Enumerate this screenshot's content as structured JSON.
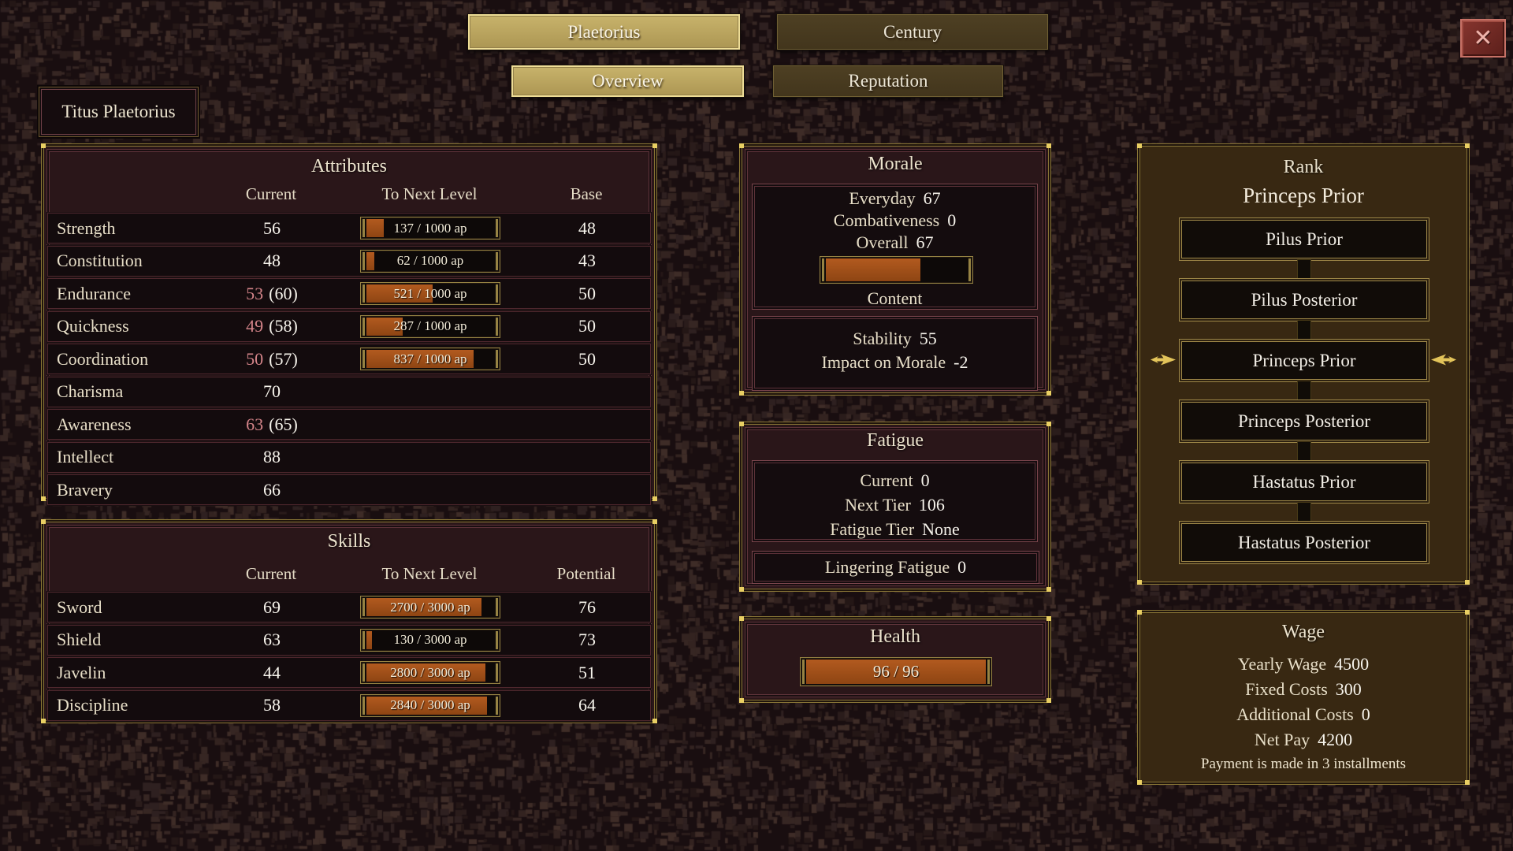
{
  "icons": {
    "close": "✕"
  },
  "tabs": [
    {
      "label": "Plaetorius",
      "active": true
    },
    {
      "label": "Century",
      "active": false
    },
    {
      "label": "Overview",
      "active": true
    },
    {
      "label": "Reputation",
      "active": false
    }
  ],
  "character": {
    "name": "Titus Plaetorius"
  },
  "attributes": {
    "title": "Attributes",
    "columns": {
      "current": "Current",
      "next": "To Next Level",
      "base": "Base"
    },
    "rows": [
      {
        "name": "Strength",
        "current": "56",
        "cap": "",
        "bar_label": "137 / 1000 ap",
        "fill": 13.7,
        "base": "48"
      },
      {
        "name": "Constitution",
        "current": "48",
        "cap": "",
        "bar_label": "62 / 1000 ap",
        "fill": 6.2,
        "base": "43"
      },
      {
        "name": "Endurance",
        "current": "53",
        "cap": "(60)",
        "bar_label": "521 / 1000 ap",
        "fill": 52.1,
        "base": "50"
      },
      {
        "name": "Quickness",
        "current": "49",
        "cap": "(58)",
        "bar_label": "287 / 1000 ap",
        "fill": 28.7,
        "base": "50"
      },
      {
        "name": "Coordination",
        "current": "50",
        "cap": "(57)",
        "bar_label": "837 / 1000 ap",
        "fill": 83.7,
        "base": "50"
      },
      {
        "name": "Charisma",
        "current": "70",
        "cap": ""
      },
      {
        "name": "Awareness",
        "current": "63",
        "cap": "(65)"
      },
      {
        "name": "Intellect",
        "current": "88",
        "cap": ""
      },
      {
        "name": "Bravery",
        "current": "66",
        "cap": ""
      }
    ]
  },
  "skills": {
    "title": "Skills",
    "columns": {
      "current": "Current",
      "next": "To Next Level",
      "potential": "Potential"
    },
    "rows": [
      {
        "name": "Sword",
        "current": "69",
        "bar_label": "2700 / 3000 ap",
        "fill": 90.0,
        "potential": "76"
      },
      {
        "name": "Shield",
        "current": "63",
        "bar_label": "130 / 3000 ap",
        "fill": 4.3,
        "potential": "73"
      },
      {
        "name": "Javelin",
        "current": "44",
        "bar_label": "2800 / 3000 ap",
        "fill": 93.3,
        "potential": "51"
      },
      {
        "name": "Discipline",
        "current": "58",
        "bar_label": "2840 / 3000 ap",
        "fill": 94.7,
        "potential": "64"
      }
    ]
  },
  "morale": {
    "title": "Morale",
    "everyday_label": "Everyday",
    "everyday": "67",
    "combativeness_label": "Combativeness",
    "combativeness": "0",
    "overall_label": "Overall",
    "overall": "67",
    "fill": 67,
    "state": "Content",
    "stability_label": "Stability",
    "stability": "55",
    "impact_label": "Impact on Morale",
    "impact": "-2"
  },
  "fatigue": {
    "title": "Fatigue",
    "current_label": "Current",
    "current": "0",
    "next_tier_label": "Next Tier",
    "next_tier": "106",
    "tier_label": "Fatigue Tier",
    "tier": "None",
    "lingering_label": "Lingering Fatigue",
    "lingering": "0"
  },
  "health": {
    "title": "Health",
    "label": "96 / 96",
    "fill": 100
  },
  "rank": {
    "title": "Rank",
    "current": "Princeps Prior",
    "current_index": 2,
    "ladder": [
      "Pilus Prior",
      "Pilus Posterior",
      "Princeps Prior",
      "Princeps Posterior",
      "Hastatus Prior",
      "Hastatus Posterior"
    ]
  },
  "wage": {
    "title": "Wage",
    "items": [
      {
        "label": "Yearly Wage",
        "value": "4500"
      },
      {
        "label": "Fixed Costs",
        "value": "300"
      },
      {
        "label": "Additional Costs",
        "value": "0"
      },
      {
        "label": "Net Pay",
        "value": "4200"
      }
    ],
    "note": "Payment is made in 3 installments"
  }
}
